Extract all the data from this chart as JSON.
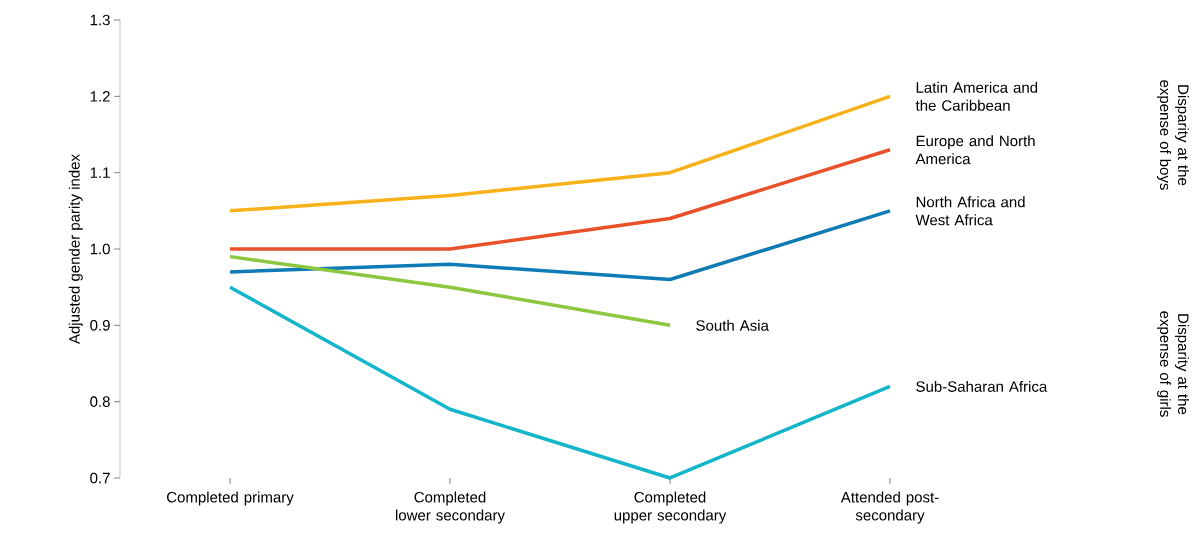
{
  "chart_data": {
    "type": "line",
    "ylabel": "Adjusted gender parity index",
    "categories": [
      "Completed primary",
      "Completed lower secondary",
      "Completed upper secondary",
      "Attended post-secondary"
    ],
    "series": [
      {
        "name": "Latin America and the Caribbean",
        "color": "#f7b21b",
        "values": [
          1.05,
          1.07,
          1.1,
          1.2
        ]
      },
      {
        "name": "Europe and North America",
        "color": "#e8512a",
        "values": [
          1.0,
          1.0,
          1.04,
          1.13
        ]
      },
      {
        "name": "North Africa and West Africa",
        "color": "#0e7bb5",
        "values": [
          0.97,
          0.98,
          0.96,
          1.05
        ]
      },
      {
        "name": "South Asia",
        "color": "#8dc63f",
        "values": [
          0.99,
          0.95,
          0.9,
          null
        ]
      },
      {
        "name": "Sub-Saharan Africa",
        "color": "#12b5c9",
        "values": [
          0.95,
          0.79,
          0.7,
          0.82
        ]
      }
    ],
    "ylim": [
      0.7,
      1.3
    ],
    "yticks": [
      0.7,
      0.8,
      0.9,
      {
        "value": 1.0,
        "label": "1.0"
      },
      1.1,
      1.2,
      1.3
    ],
    "annotations": [
      "Disparity at the expense of boys",
      "Disparity at the expense of girls"
    ],
    "legend": false,
    "marker": "none",
    "line_style": "solid",
    "grid": false
  }
}
